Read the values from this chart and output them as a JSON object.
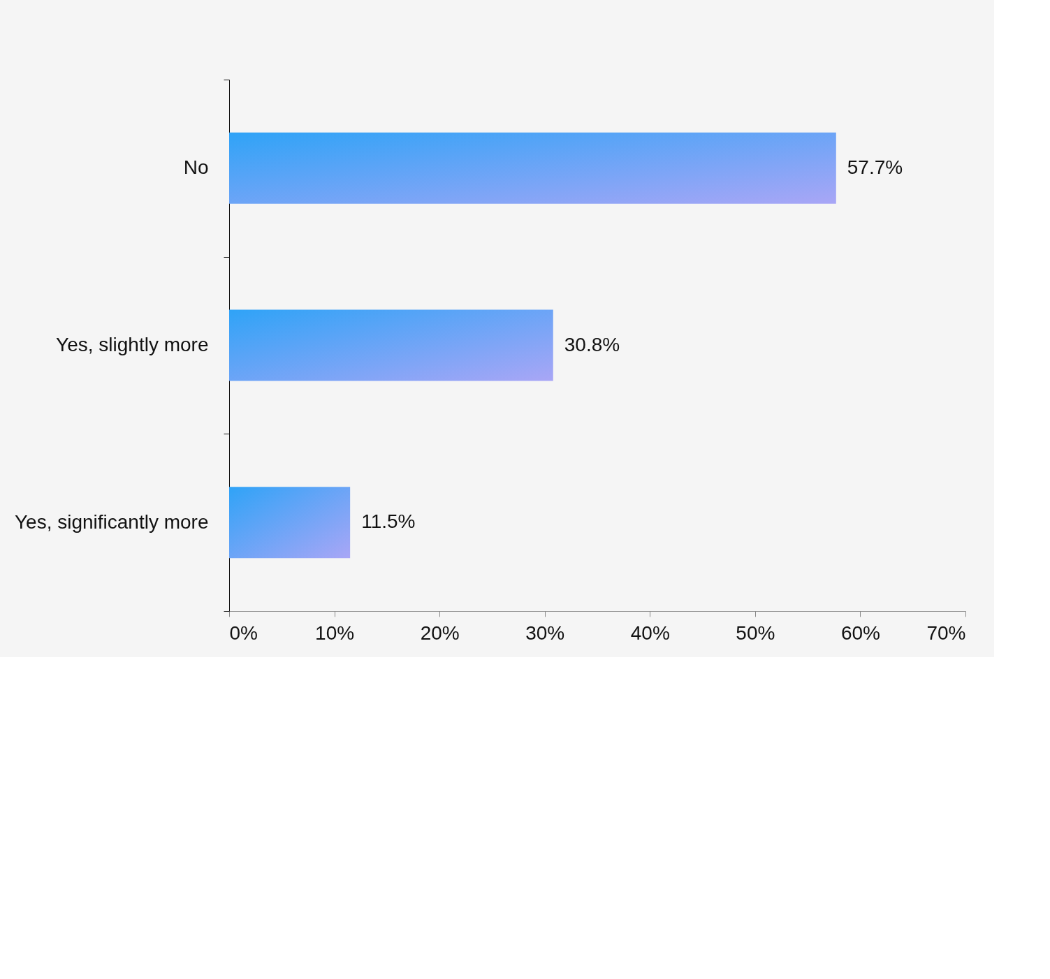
{
  "chart_data": {
    "type": "bar",
    "orientation": "horizontal",
    "categories": [
      "No",
      "Yes, slightly more",
      "Yes, significantly more"
    ],
    "values": [
      57.7,
      30.8,
      11.5
    ],
    "color": "#2fa3f7",
    "xlim": [
      0,
      70
    ],
    "xticks": [
      {
        "value": 0,
        "label": "0%"
      },
      {
        "value": 10,
        "label": "10%"
      },
      {
        "value": 20,
        "label": "20%"
      },
      {
        "value": 30,
        "label": "30%"
      },
      {
        "value": 40,
        "label": "40%"
      },
      {
        "value": 50,
        "label": "50%"
      },
      {
        "value": 60,
        "label": "60%"
      },
      {
        "value": 70,
        "label": "70%"
      }
    ],
    "value_labels": [
      "57.7%",
      "30.8%",
      "11.5%"
    ],
    "grid": false
  }
}
